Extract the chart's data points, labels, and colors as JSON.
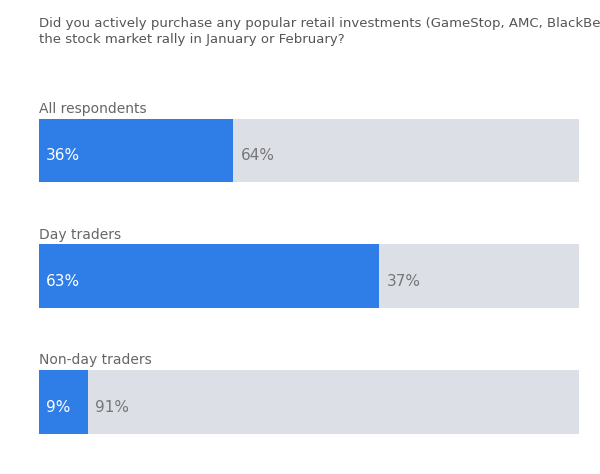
{
  "title_line1": "Did you actively purchase any popular retail investments (GameStop, AMC, BlackBerry, etc.) during",
  "title_line2": "the stock market rally in January or February?",
  "title_fontsize": 9.5,
  "title_color": "#555555",
  "groups": [
    {
      "label": "All respondents",
      "yes": 36,
      "no": 64
    },
    {
      "label": "Day traders",
      "yes": 63,
      "no": 37
    },
    {
      "label": "Non-day traders",
      "yes": 9,
      "no": 91
    }
  ],
  "yes_color": "#2F7EE8",
  "no_color": "#DCDFE6",
  "yes_label_color": "#FFFFFF",
  "no_label_color": "#777777",
  "label_fontsize": 11,
  "group_label_fontsize": 10,
  "group_label_color": "#666666",
  "background_color": "#FFFFFF"
}
